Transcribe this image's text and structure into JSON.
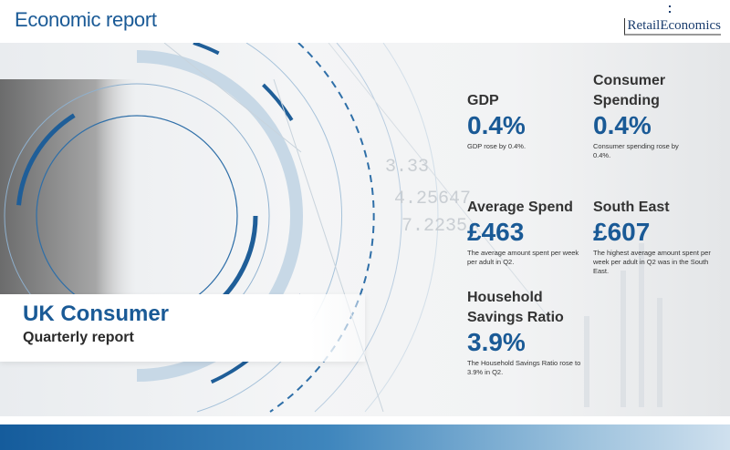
{
  "header": {
    "title": "Economic report",
    "logo": "RetailEconomics"
  },
  "hero": {
    "title": "UK Consumer",
    "subtitle": "Quarterly report",
    "background_numbers": [
      "3.33",
      "4.25647",
      "7.2235"
    ]
  },
  "stats": [
    {
      "label": "GDP",
      "value": "0.4%",
      "description": "GDP rose by 0.4%."
    },
    {
      "label": "Consumer Spending",
      "value": "0.4%",
      "description": "Consumer spending rose by 0.4%."
    },
    {
      "label": "Average Spend",
      "value": "£463",
      "description": "The average amount spent per week per adult in Q2."
    },
    {
      "label": "South East",
      "value": "£607",
      "description": "The highest average amount spent per week per adult in Q2 was in the South East."
    },
    {
      "label": "Household Savings Ratio",
      "value": "3.9%",
      "description": "The Household Savings Ratio rose to 3.9% in Q2."
    }
  ],
  "colors": {
    "accent": "#1a5a96",
    "footer_start": "#155c9c",
    "footer_end": "#cfe0ee"
  }
}
